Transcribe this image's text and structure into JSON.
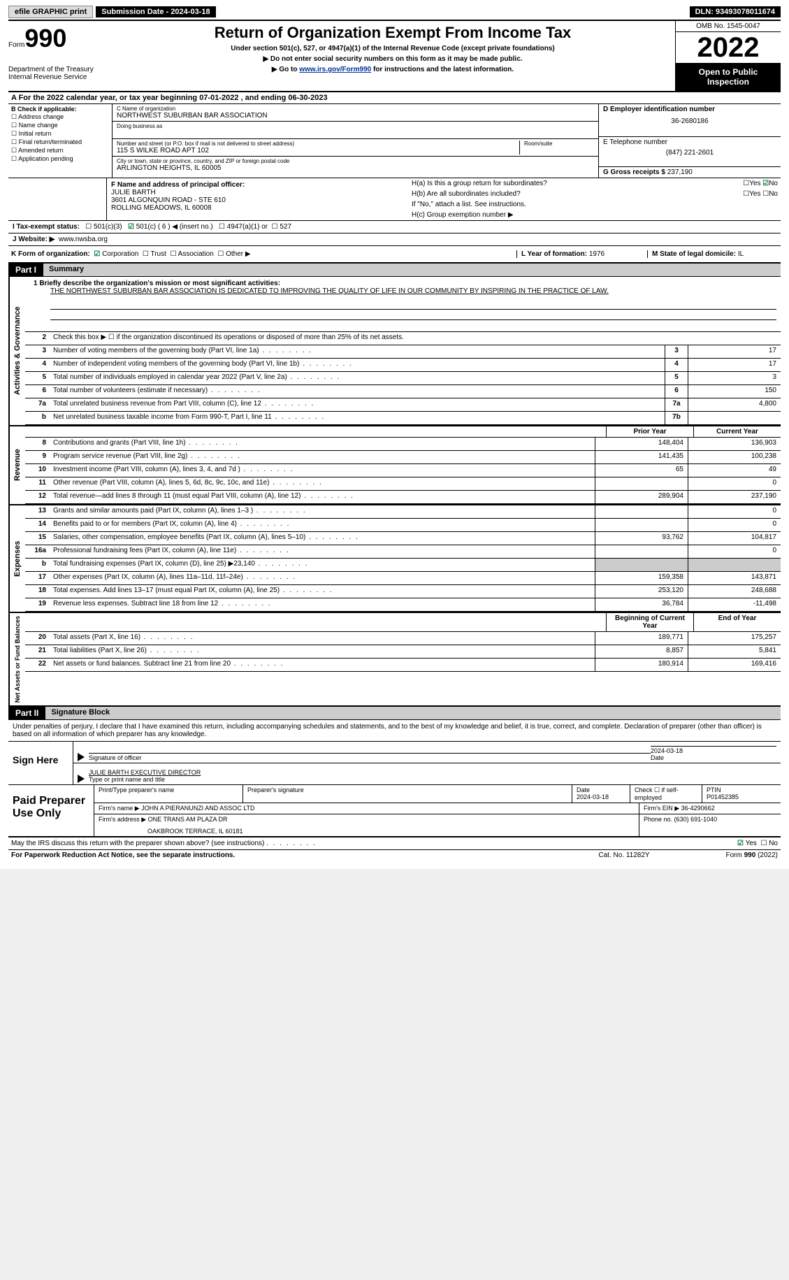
{
  "topbar": {
    "efile": "efile GRAPHIC print",
    "submission": "Submission Date - 2024-03-18",
    "dln": "DLN: 93493078011674"
  },
  "header": {
    "form_label": "Form",
    "form_num": "990",
    "dept": "Department of the Treasury",
    "irs": "Internal Revenue Service",
    "title": "Return of Organization Exempt From Income Tax",
    "sub": "Under section 501(c), 527, or 4947(a)(1) of the Internal Revenue Code (except private foundations)",
    "note1": "▶ Do not enter social security numbers on this form as it may be made public.",
    "note2_pre": "▶ Go to ",
    "note2_link": "www.irs.gov/Form990",
    "note2_post": " for instructions and the latest information.",
    "omb": "OMB No. 1545-0047",
    "year": "2022",
    "open": "Open to Public Inspection"
  },
  "rowA": "A For the 2022 calendar year, or tax year beginning 07-01-2022   , and ending 06-30-2023",
  "colB": {
    "title": "B Check if applicable:",
    "items": [
      "Address change",
      "Name change",
      "Initial return",
      "Final return/terminated",
      "Amended return",
      "Application pending"
    ]
  },
  "colC": {
    "name_label": "C Name of organization",
    "name": "NORTHWEST SUBURBAN BAR ASSOCIATION",
    "dba_label": "Doing business as",
    "addr_label": "Number and street (or P.O. box if mail is not delivered to street address)",
    "room_label": "Room/suite",
    "addr": "115 S WILKE ROAD APT 102",
    "city_label": "City or town, state or province, country, and ZIP or foreign postal code",
    "city": "ARLINGTON HEIGHTS, IL  60005"
  },
  "colD": {
    "ein_label": "D Employer identification number",
    "ein": "36-2680186",
    "phone_label": "E Telephone number",
    "phone": "(847) 221-2601",
    "gross_label": "G Gross receipts $",
    "gross": "237,190"
  },
  "rowF": {
    "label": "F Name and address of principal officer:",
    "name": "JULIE BARTH",
    "addr1": "3601 ALGONQUIN ROAD - STE 610",
    "addr2": "ROLLING MEADOWS, IL  60008"
  },
  "rowH": {
    "a": "H(a)  Is this a group return for subordinates?",
    "b": "H(b)  Are all subordinates included?",
    "b_note": "If \"No,\" attach a list. See instructions.",
    "c": "H(c)  Group exemption number ▶"
  },
  "rowI": {
    "label": "I  Tax-exempt status:",
    "c3": "501(c)(3)",
    "c": "501(c) ( 6 ) ◀ (insert no.)",
    "a1": "4947(a)(1) or",
    "s527": "527"
  },
  "rowJ": {
    "label": "J  Website: ▶",
    "url": "www.nwsba.org"
  },
  "rowK": {
    "label": "K Form of organization:",
    "corp": "Corporation",
    "trust": "Trust",
    "assoc": "Association",
    "other": "Other ▶",
    "year_label": "L Year of formation:",
    "year": "1976",
    "state_label": "M State of legal domicile:",
    "state": "IL"
  },
  "part1": {
    "header": "Part I",
    "title": "Summary",
    "line1_label": "1  Briefly describe the organization's mission or most significant activities:",
    "line1_text": "THE NORTHWEST SUBURBAN BAR ASSOCIATION IS DEDICATED TO IMPROVING THE QUALITY OF LIFE IN OUR COMMUNITY BY INSPIRING IN THE PRACTICE OF LAW.",
    "line2": "Check this box ▶ ☐ if the organization discontinued its operations or disposed of more than 25% of its net assets.",
    "lines_act": [
      {
        "n": "3",
        "t": "Number of voting members of the governing body (Part VI, line 1a)",
        "box": "3",
        "v": "17"
      },
      {
        "n": "4",
        "t": "Number of independent voting members of the governing body (Part VI, line 1b)",
        "box": "4",
        "v": "17"
      },
      {
        "n": "5",
        "t": "Total number of individuals employed in calendar year 2022 (Part V, line 2a)",
        "box": "5",
        "v": "3"
      },
      {
        "n": "6",
        "t": "Total number of volunteers (estimate if necessary)",
        "box": "6",
        "v": "150"
      },
      {
        "n": "7a",
        "t": "Total unrelated business revenue from Part VIII, column (C), line 12",
        "box": "7a",
        "v": "4,800"
      },
      {
        "n": "b",
        "t": "Net unrelated business taxable income from Form 990-T, Part I, line 11",
        "box": "7b",
        "v": ""
      }
    ],
    "prior_label": "Prior Year",
    "current_label": "Current Year",
    "revenue": [
      {
        "n": "8",
        "t": "Contributions and grants (Part VIII, line 1h)",
        "p": "148,404",
        "c": "136,903"
      },
      {
        "n": "9",
        "t": "Program service revenue (Part VIII, line 2g)",
        "p": "141,435",
        "c": "100,238"
      },
      {
        "n": "10",
        "t": "Investment income (Part VIII, column (A), lines 3, 4, and 7d )",
        "p": "65",
        "c": "49"
      },
      {
        "n": "11",
        "t": "Other revenue (Part VIII, column (A), lines 5, 6d, 8c, 9c, 10c, and 11e)",
        "p": "",
        "c": "0"
      },
      {
        "n": "12",
        "t": "Total revenue—add lines 8 through 11 (must equal Part VIII, column (A), line 12)",
        "p": "289,904",
        "c": "237,190"
      }
    ],
    "expenses": [
      {
        "n": "13",
        "t": "Grants and similar amounts paid (Part IX, column (A), lines 1–3 )",
        "p": "",
        "c": "0"
      },
      {
        "n": "14",
        "t": "Benefits paid to or for members (Part IX, column (A), line 4)",
        "p": "",
        "c": "0"
      },
      {
        "n": "15",
        "t": "Salaries, other compensation, employee benefits (Part IX, column (A), lines 5–10)",
        "p": "93,762",
        "c": "104,817"
      },
      {
        "n": "16a",
        "t": "Professional fundraising fees (Part IX, column (A), line 11e)",
        "p": "",
        "c": "0"
      },
      {
        "n": "b",
        "t": "Total fundraising expenses (Part IX, column (D), line 25) ▶23,140",
        "p": "SHADED",
        "c": "SHADED"
      },
      {
        "n": "17",
        "t": "Other expenses (Part IX, column (A), lines 11a–11d, 11f–24e)",
        "p": "159,358",
        "c": "143,871"
      },
      {
        "n": "18",
        "t": "Total expenses. Add lines 13–17 (must equal Part IX, column (A), line 25)",
        "p": "253,120",
        "c": "248,688"
      },
      {
        "n": "19",
        "t": "Revenue less expenses. Subtract line 18 from line 12",
        "p": "36,784",
        "c": "-11,498"
      }
    ],
    "begin_label": "Beginning of Current Year",
    "end_label": "End of Year",
    "netassets": [
      {
        "n": "20",
        "t": "Total assets (Part X, line 16)",
        "p": "189,771",
        "c": "175,257"
      },
      {
        "n": "21",
        "t": "Total liabilities (Part X, line 26)",
        "p": "8,857",
        "c": "5,841"
      },
      {
        "n": "22",
        "t": "Net assets or fund balances. Subtract line 21 from line 20",
        "p": "180,914",
        "c": "169,416"
      }
    ]
  },
  "part2": {
    "header": "Part II",
    "title": "Signature Block",
    "decl": "Under penalties of perjury, I declare that I have examined this return, including accompanying schedules and statements, and to the best of my knowledge and belief, it is true, correct, and complete. Declaration of preparer (other than officer) is based on all information of which preparer has any knowledge.",
    "sign_here": "Sign Here",
    "sig_officer": "Signature of officer",
    "sig_date": "2024-03-18",
    "date_label": "Date",
    "officer_name": "JULIE BARTH  EXECUTIVE DIRECTOR",
    "type_name": "Type or print name and title",
    "paid": "Paid Preparer Use Only",
    "prep_name_label": "Print/Type preparer's name",
    "prep_sig_label": "Preparer's signature",
    "prep_date_label": "Date",
    "prep_date": "2024-03-18",
    "check_self": "Check ☐ if self-employed",
    "ptin_label": "PTIN",
    "ptin": "P01452385",
    "firm_name_label": "Firm's name   ▶",
    "firm_name": "JOHN A PIERANUNZI AND ASSOC LTD",
    "firm_ein_label": "Firm's EIN ▶",
    "firm_ein": "36-4290662",
    "firm_addr_label": "Firm's address ▶",
    "firm_addr1": "ONE TRANS AM PLAZA DR",
    "firm_addr2": "OAKBROOK TERRACE, IL  60181",
    "firm_phone_label": "Phone no.",
    "firm_phone": "(630) 691-1040",
    "discuss": "May the IRS discuss this return with the preparer shown above? (see instructions)",
    "yes": "Yes",
    "no": "No"
  },
  "footer": {
    "notice": "For Paperwork Reduction Act Notice, see the separate instructions.",
    "cat": "Cat. No. 11282Y",
    "form": "Form 990 (2022)"
  }
}
